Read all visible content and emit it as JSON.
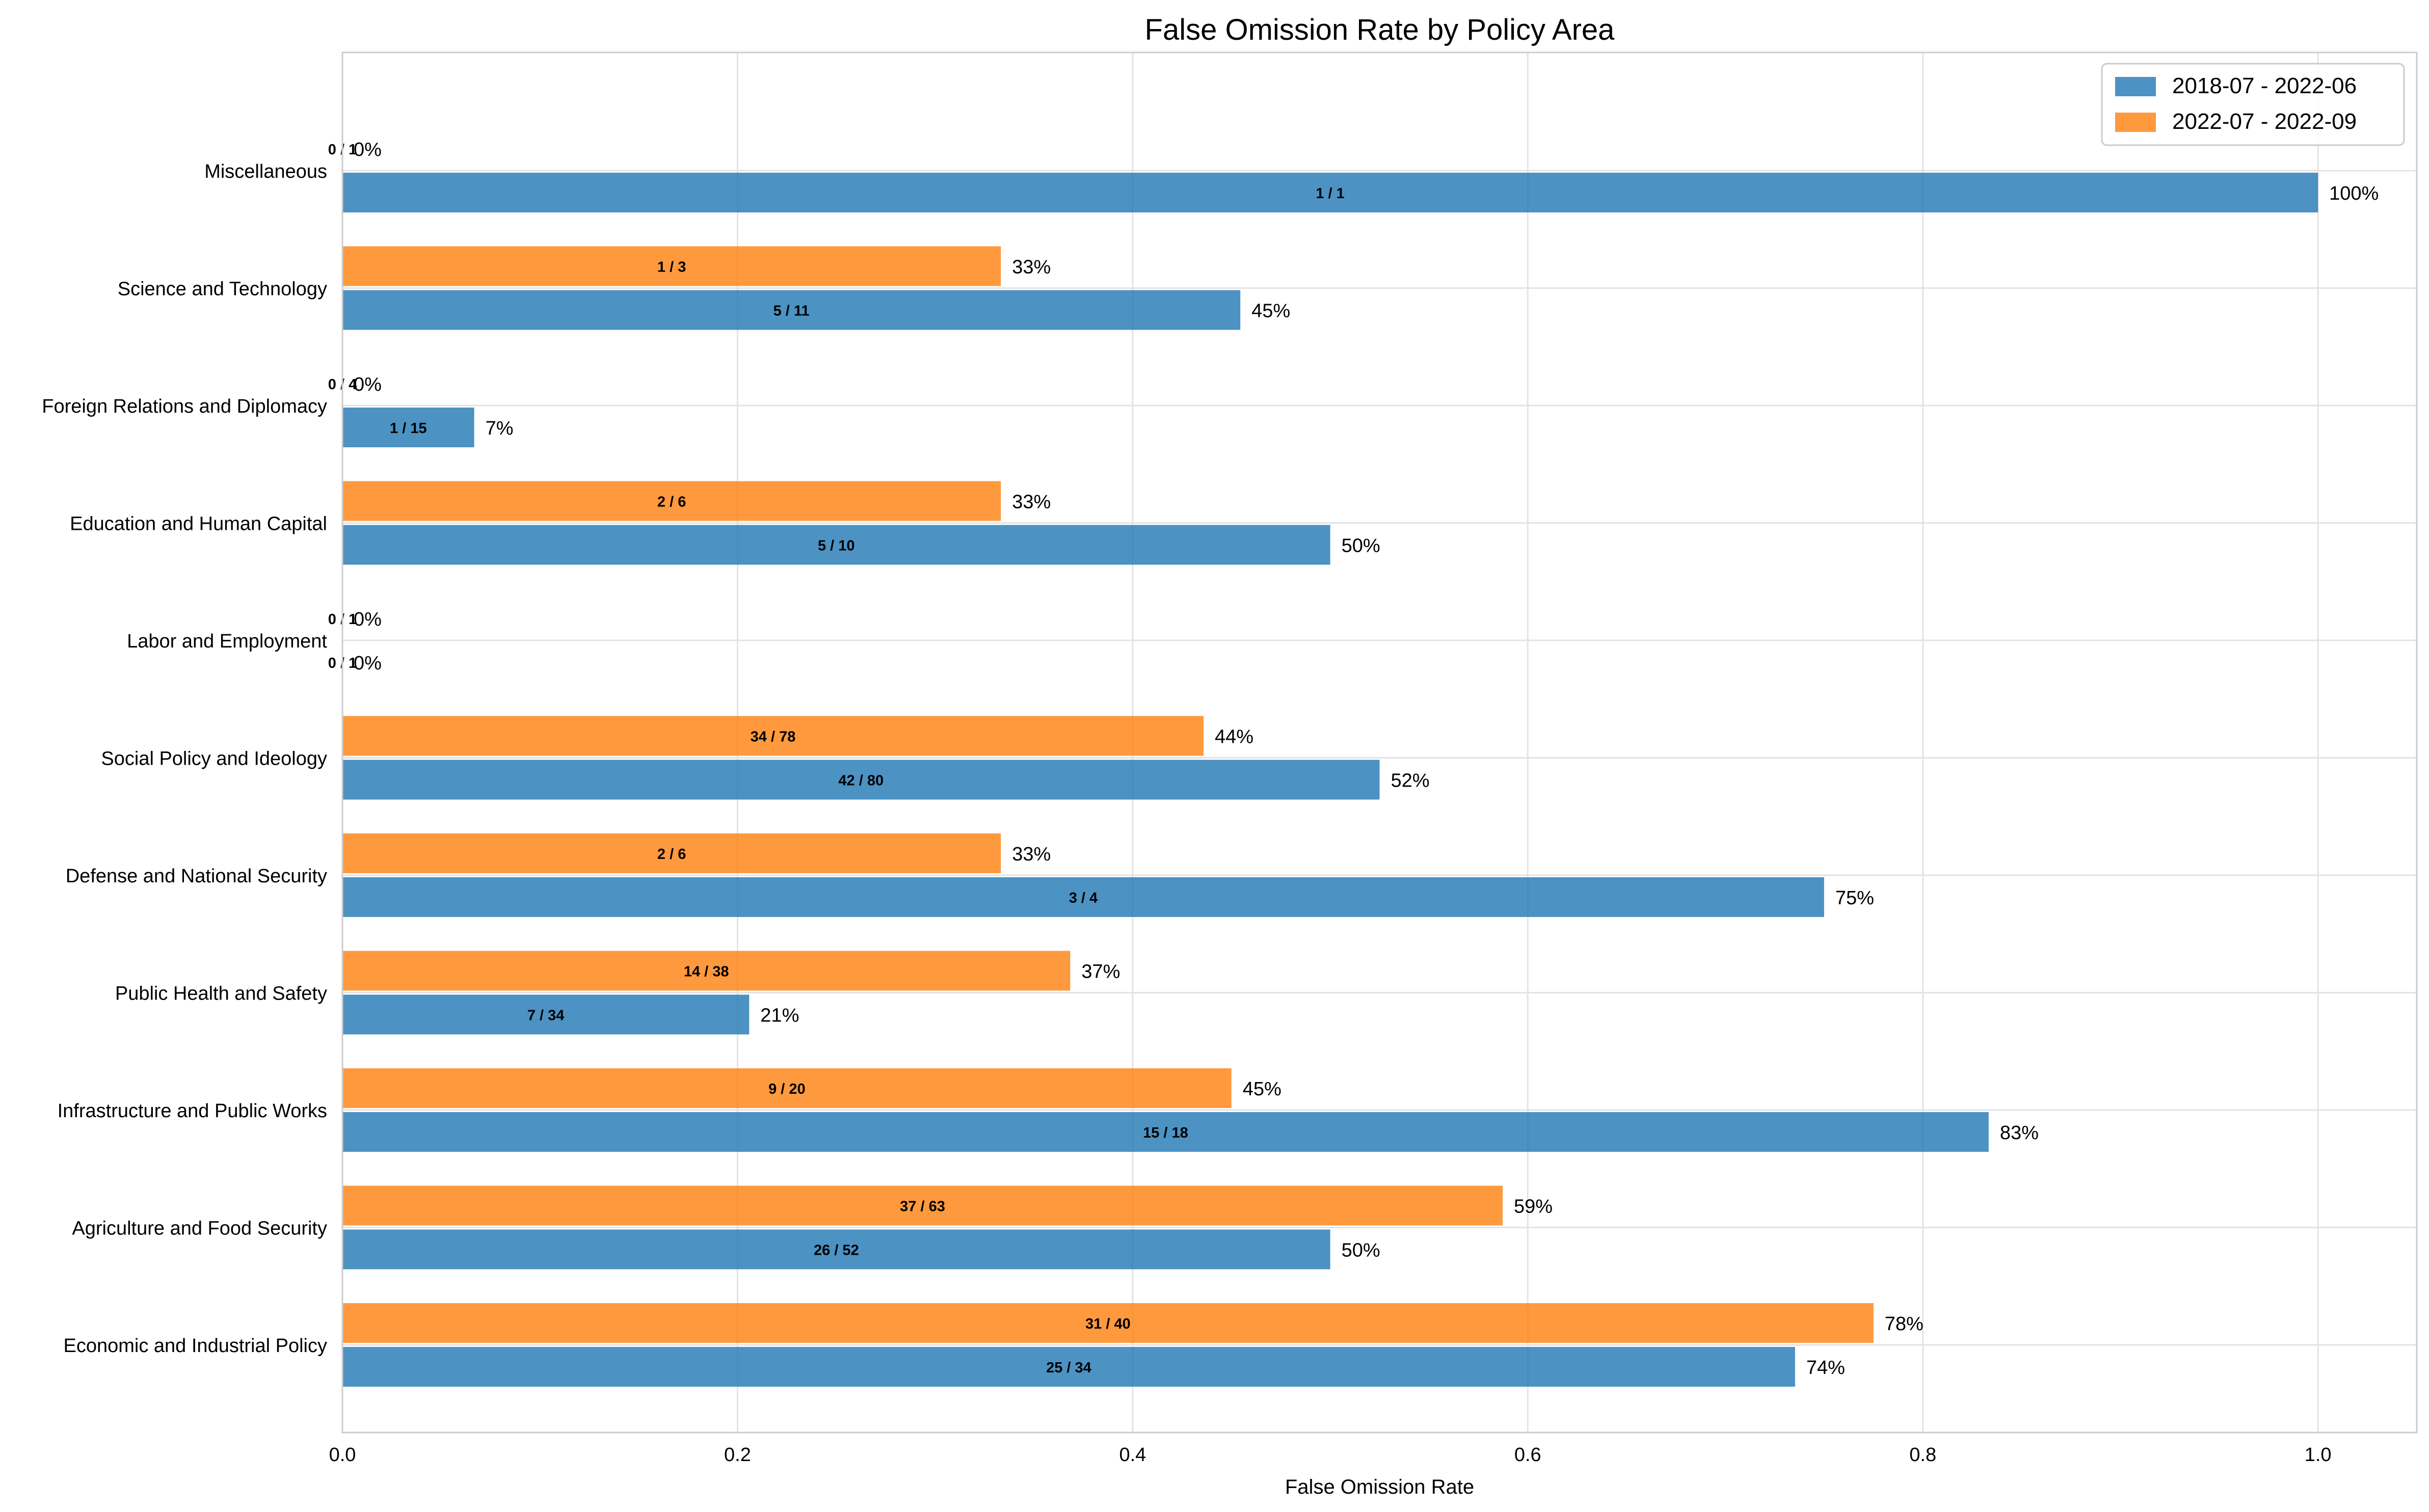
{
  "chart_data": {
    "type": "bar",
    "orientation": "horizontal",
    "title": "False Omission Rate by Policy Area",
    "xlabel": "False Omission Rate",
    "ylabel": "",
    "xlim": [
      0,
      1.05
    ],
    "xticks": [
      0.0,
      0.2,
      0.4,
      0.6,
      0.8,
      1.0
    ],
    "xtick_labels": [
      "0.0",
      "0.2",
      "0.4",
      "0.6",
      "0.8",
      "1.0"
    ],
    "grid": true,
    "legend_position": "top-right",
    "categories": [
      "Miscellaneous",
      "Science and Technology",
      "Foreign Relations and Diplomacy",
      "Education and Human Capital",
      "Labor and Employment",
      "Social Policy and Ideology",
      "Defense and National Security",
      "Public Health and Safety",
      "Infrastructure and Public Works",
      "Agriculture and Food Security",
      "Economic and Industrial Policy"
    ],
    "series": [
      {
        "name": "2018-07 - 2022-06",
        "color": "#1f77b4",
        "values": [
          1.0,
          0.4545,
          0.0667,
          0.5,
          0.0,
          0.525,
          0.75,
          0.2059,
          0.8333,
          0.5,
          0.7353
        ],
        "fraction_labels": [
          "1 / 1",
          "5 / 11",
          "1 / 15",
          "5 / 10",
          "0 / 1",
          "42 / 80",
          "3 / 4",
          "7 / 34",
          "15 / 18",
          "26 / 52",
          "25 / 34"
        ],
        "percent_labels": [
          "100%",
          "45%",
          "7%",
          "50%",
          "0%",
          "52%",
          "75%",
          "21%",
          "83%",
          "50%",
          "74%"
        ]
      },
      {
        "name": "2022-07 - 2022-09",
        "color": "#ff7f0e",
        "values": [
          0.0,
          0.3333,
          0.0,
          0.3333,
          0.0,
          0.4359,
          0.3333,
          0.3684,
          0.45,
          0.5873,
          0.775
        ],
        "fraction_labels": [
          "0 / 1",
          "1 / 3",
          "0 / 4",
          "2 / 6",
          "0 / 1",
          "34 / 78",
          "2 / 6",
          "14 / 38",
          "9 / 20",
          "37 / 63",
          "31 / 40"
        ],
        "percent_labels": [
          "0%",
          "33%",
          "0%",
          "33%",
          "0%",
          "44%",
          "33%",
          "37%",
          "45%",
          "59%",
          "78%"
        ]
      }
    ]
  }
}
